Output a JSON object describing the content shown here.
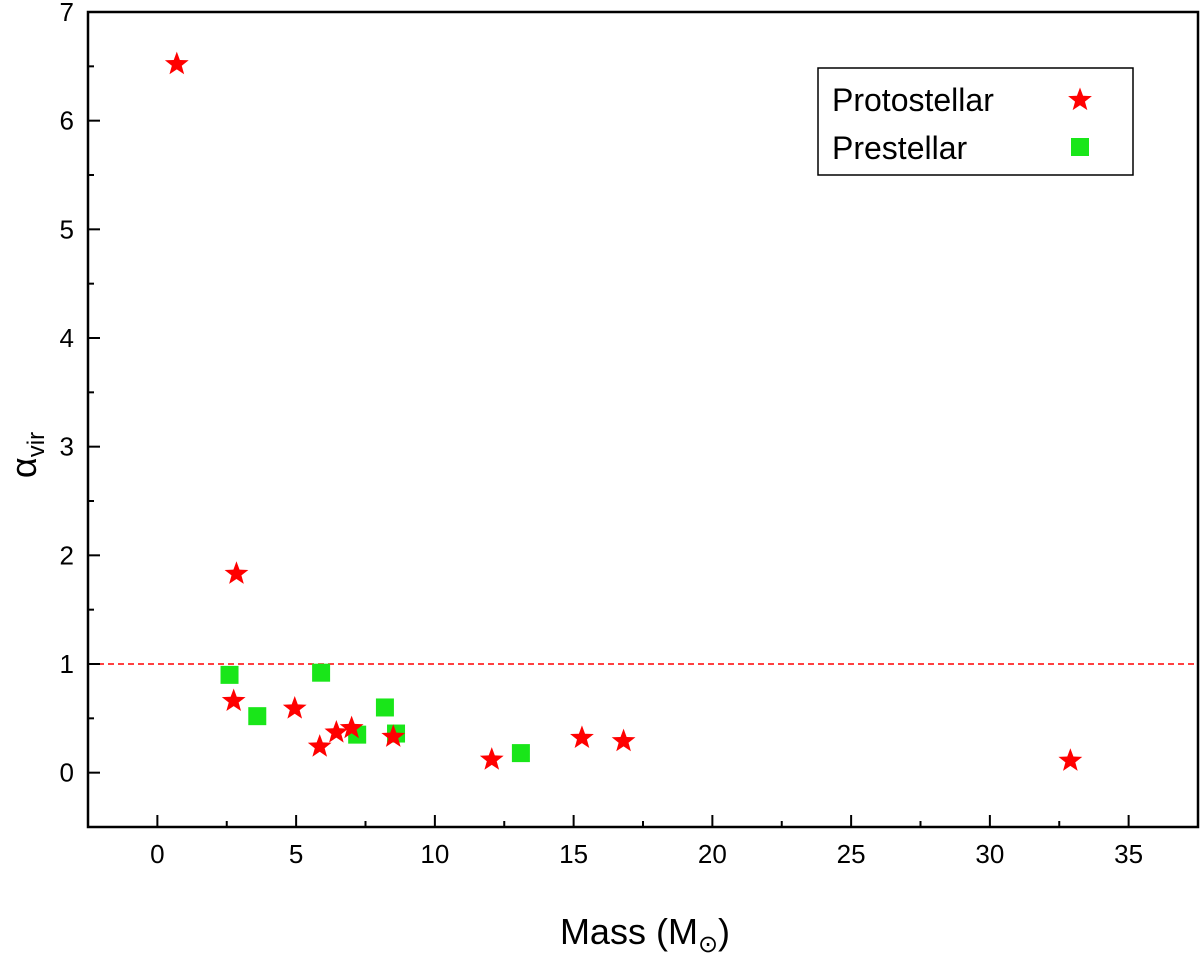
{
  "chart_data": {
    "type": "scatter",
    "title": "",
    "xlabel": "Mass (M",
    "xlabel_sub": "⊙",
    "xlabel_close": ")",
    "ylabel": "α",
    "ylabel_sub": "vir",
    "xlim": [
      -2.5,
      37.5
    ],
    "ylim": [
      -0.5,
      7
    ],
    "xticks": [
      0,
      5,
      10,
      15,
      20,
      25,
      30,
      35
    ],
    "yticks": [
      0,
      1,
      2,
      3,
      4,
      5,
      6,
      7
    ],
    "grid": false,
    "legend_position": "top-right",
    "reference_line": {
      "y": 1,
      "style": "dashed",
      "color": "#ff0000"
    },
    "series": [
      {
        "name": "Protostellar",
        "marker": "star",
        "color": "#ff0000",
        "x": [
          0.7,
          2.85,
          2.75,
          4.95,
          5.85,
          6.45,
          7.0,
          8.5,
          12.05,
          15.3,
          16.8,
          32.9
        ],
        "y": [
          6.52,
          1.83,
          0.66,
          0.59,
          0.24,
          0.37,
          0.41,
          0.33,
          0.12,
          0.32,
          0.29,
          0.11
        ]
      },
      {
        "name": "Prestellar",
        "marker": "square",
        "color": "#19e619",
        "x": [
          2.6,
          3.6,
          5.9,
          7.2,
          8.2,
          8.6,
          13.1
        ],
        "y": [
          0.9,
          0.52,
          0.92,
          0.35,
          0.6,
          0.36,
          0.18
        ]
      }
    ]
  }
}
